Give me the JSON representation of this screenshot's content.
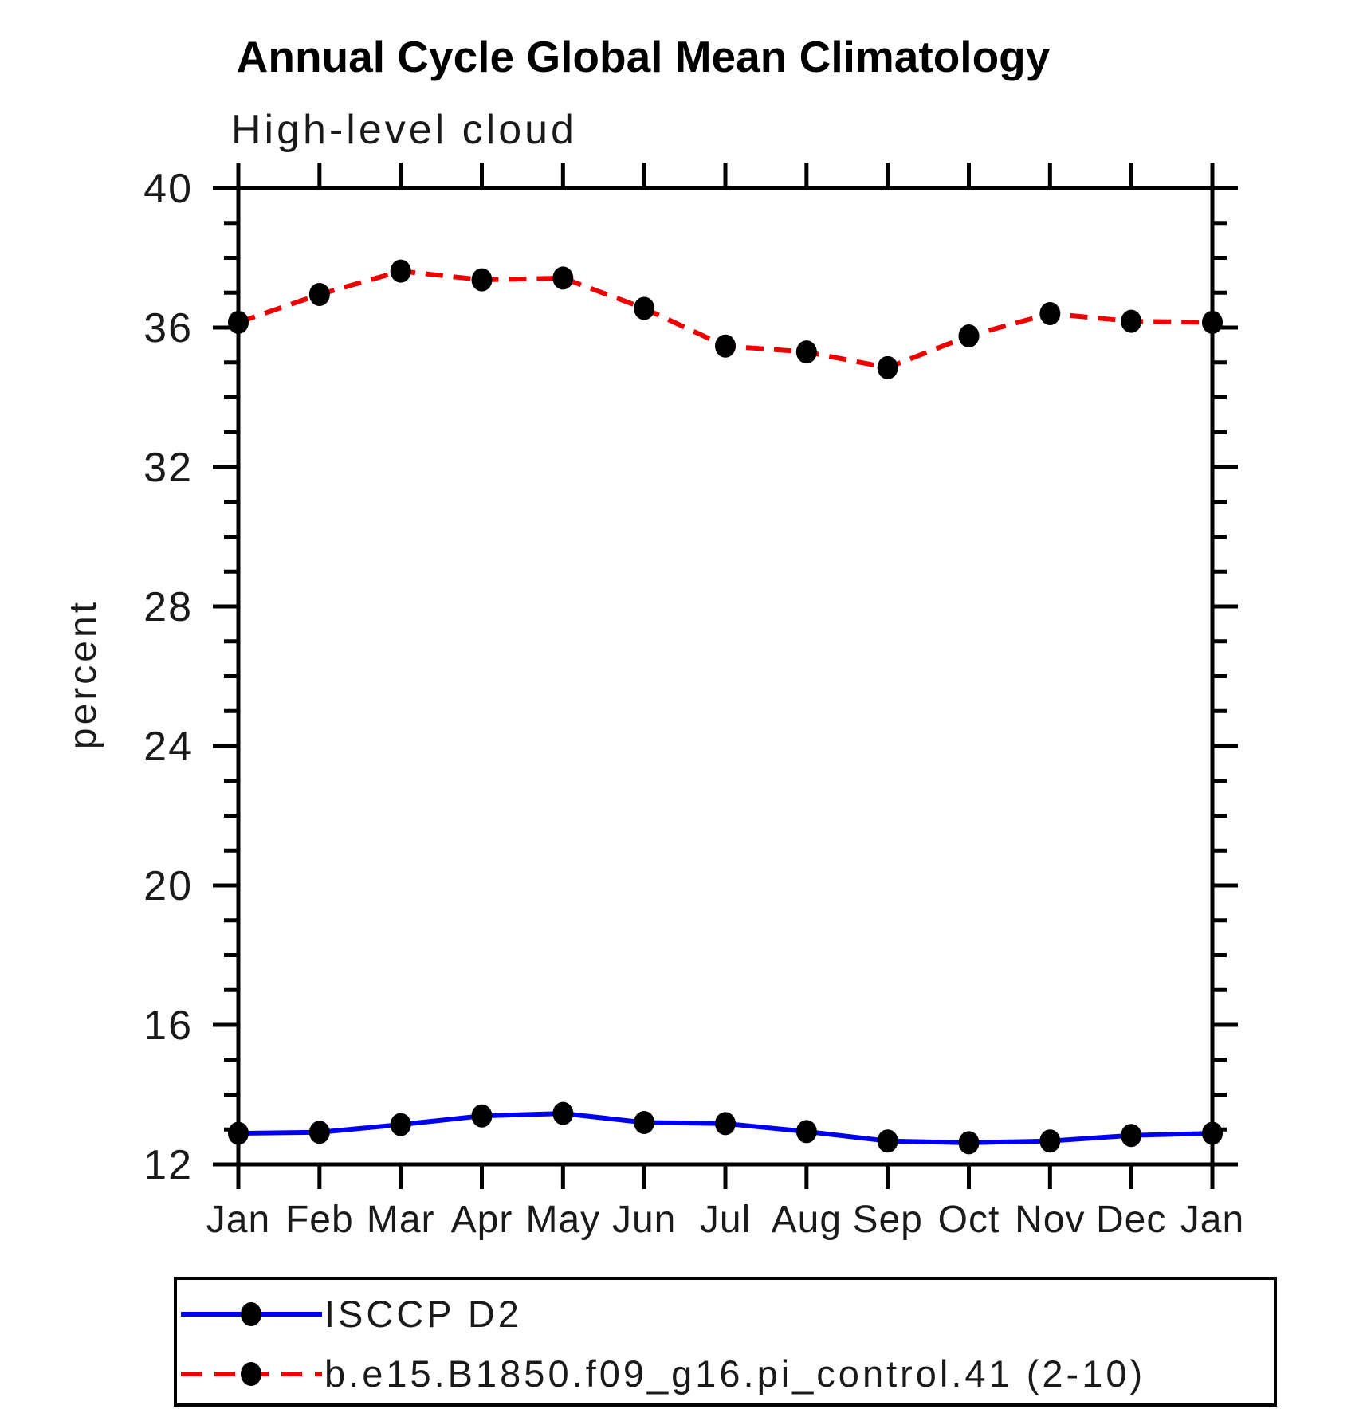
{
  "title": "Annual Cycle Global Mean Climatology",
  "subtitle": "High-level cloud",
  "chart_data": {
    "type": "line",
    "title": "Annual Cycle Global Mean Climatology",
    "subtitle": "High-level cloud",
    "xlabel": "",
    "ylabel": "percent",
    "categories": [
      "Jan",
      "Feb",
      "Mar",
      "Apr",
      "May",
      "Jun",
      "Jul",
      "Aug",
      "Sep",
      "Oct",
      "Nov",
      "Dec",
      "Jan"
    ],
    "ylim": [
      12,
      40
    ],
    "ytick_major_step": 4,
    "ytick_minor_step": 1,
    "ytick_labels": [
      "12",
      "16",
      "20",
      "24",
      "28",
      "32",
      "36",
      "40"
    ],
    "grid": false,
    "legend_position": "bottom-left-box",
    "series": [
      {
        "name": "ISCCP D2",
        "color": "#0000ee",
        "line_style": "solid",
        "marker": "filled-circle",
        "marker_color": "#000000",
        "values": [
          12.89,
          12.92,
          13.14,
          13.39,
          13.46,
          13.2,
          13.17,
          12.94,
          12.67,
          12.62,
          12.67,
          12.83,
          12.89
        ]
      },
      {
        "name": "b.e15.B1850.f09_g16.pi_control.41 (2-10)",
        "color": "#ee0000",
        "line_style": "dashed",
        "marker": "filled-circle",
        "marker_color": "#000000",
        "values": [
          36.15,
          36.95,
          37.62,
          37.37,
          37.42,
          36.55,
          35.47,
          35.3,
          34.85,
          35.76,
          36.4,
          36.18,
          36.15
        ]
      }
    ]
  }
}
